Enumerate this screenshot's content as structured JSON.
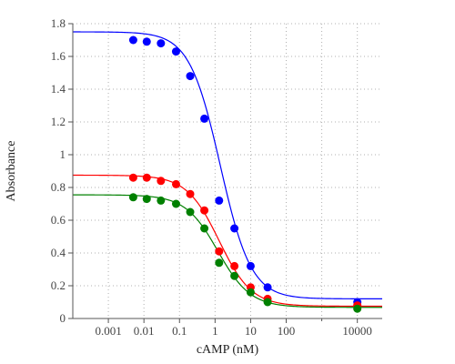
{
  "chart_data": {
    "type": "scatter",
    "xlabel": "cAMP (nM)",
    "ylabel": "Absorbance",
    "x_scale": "log",
    "xlim": [
      0.0001,
      50000
    ],
    "ylim": [
      0,
      1.8
    ],
    "grid": true,
    "x_ticks": [
      0.001,
      0.01,
      0.1,
      1,
      10,
      100,
      10000
    ],
    "x_tick_labels": [
      "0.001",
      "0.01",
      "0.1",
      "1",
      "10",
      "100",
      "10000"
    ],
    "y_ticks": [
      0,
      0.2,
      0.4,
      0.6,
      0.8,
      1,
      1.2,
      1.4,
      1.6,
      1.8
    ],
    "y_tick_labels": [
      "0",
      "0.2",
      "0.4",
      "0.6",
      "0.8",
      "1",
      "1.2",
      "1.4",
      "1.6",
      "1.8"
    ],
    "x": [
      0.005,
      0.012,
      0.03,
      0.08,
      0.2,
      0.5,
      1.3,
      3.5,
      10,
      30,
      100,
      10000
    ],
    "series": [
      {
        "color": "#0000ff",
        "values": [
          1.7,
          1.69,
          1.68,
          1.63,
          1.48,
          1.22,
          0.72,
          0.55,
          0.32,
          0.19,
          null,
          0.1
        ],
        "fit": {
          "top": 1.75,
          "bottom": 0.12,
          "ec50": 1.4,
          "hill": 1.0
        }
      },
      {
        "color": "#ff0000",
        "values": [
          0.86,
          0.86,
          0.84,
          0.82,
          0.76,
          0.66,
          0.41,
          0.32,
          0.19,
          0.12,
          null,
          0.08
        ],
        "fit": {
          "top": 0.875,
          "bottom": 0.075,
          "ec50": 1.3,
          "hill": 0.95
        }
      },
      {
        "color": "#008000",
        "values": [
          0.74,
          0.73,
          0.72,
          0.7,
          0.65,
          0.55,
          0.34,
          0.26,
          0.16,
          0.1,
          null,
          0.06
        ],
        "fit": {
          "top": 0.755,
          "bottom": 0.068,
          "ec50": 1.2,
          "hill": 0.95
        }
      }
    ]
  }
}
